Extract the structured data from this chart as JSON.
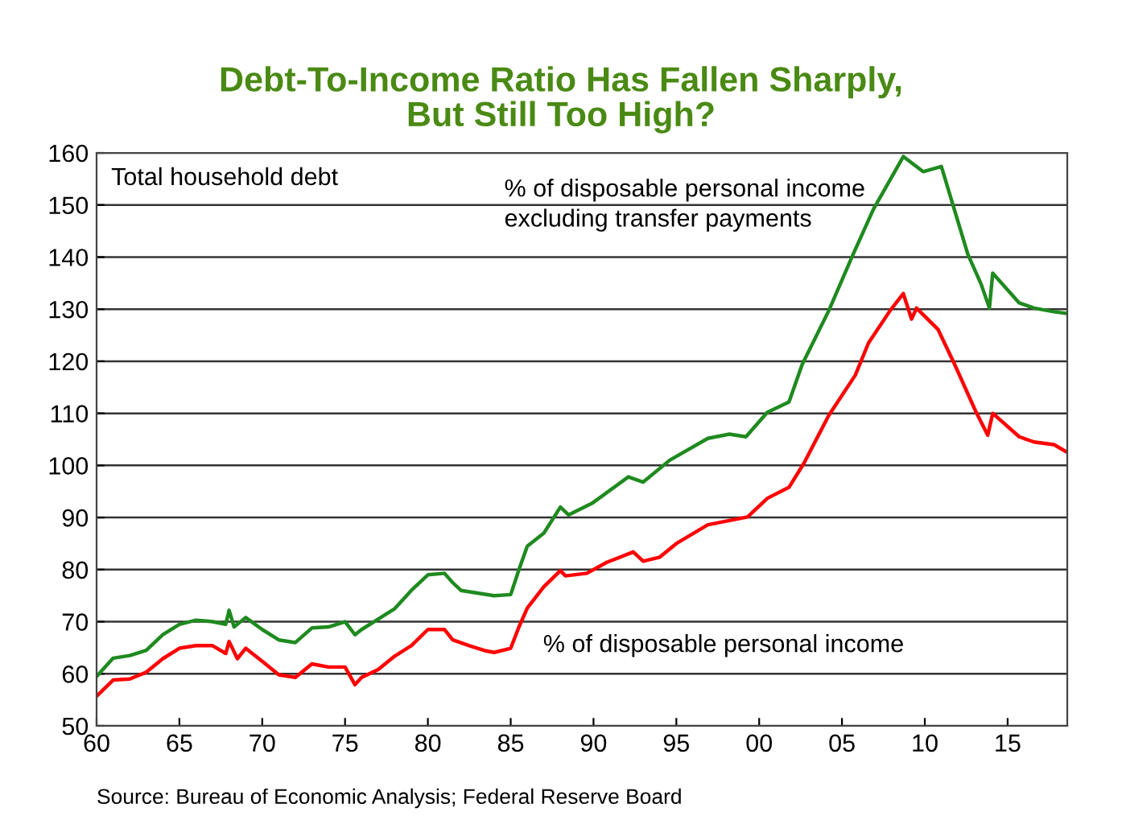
{
  "chart_data": {
    "type": "line",
    "title": "Debt-To-Income Ratio Has Fallen Sharply,\nBut Still Too High?",
    "annotations": [
      "Total household debt",
      "Source: Bureau of Economic Analysis; Federal Reserve Board"
    ],
    "xlim": [
      1960,
      2018.6
    ],
    "ylim": [
      50,
      160
    ],
    "yticks": [
      50,
      60,
      70,
      80,
      90,
      100,
      110,
      120,
      130,
      140,
      150,
      160
    ],
    "xticks": [
      {
        "value": 1960,
        "label": "60"
      },
      {
        "value": 1965,
        "label": "65"
      },
      {
        "value": 1970,
        "label": "70"
      },
      {
        "value": 1975,
        "label": "75"
      },
      {
        "value": 1980,
        "label": "80"
      },
      {
        "value": 1985,
        "label": "85"
      },
      {
        "value": 1990,
        "label": "90"
      },
      {
        "value": 1995,
        "label": "95"
      },
      {
        "value": 2000,
        "label": "00"
      },
      {
        "value": 2005,
        "label": "05"
      },
      {
        "value": 2010,
        "label": "10"
      },
      {
        "value": 2015,
        "label": "15"
      }
    ],
    "grid": "y",
    "legend": false,
    "marker": "none",
    "line_style": "solid",
    "series": [
      {
        "name": "% of disposable personal income\nexcluding transfer payments",
        "color": "#1f8a1f",
        "x": [
          1960,
          1961,
          1962,
          1963,
          1964,
          1965,
          1966,
          1967,
          1967.8,
          1968,
          1968.3,
          1969,
          1970,
          1971,
          1972,
          1973,
          1974,
          1975,
          1975.6,
          1976,
          1977,
          1978,
          1979,
          1980,
          1981,
          1981.5,
          1982,
          1983,
          1984,
          1985,
          1985.5,
          1986,
          1987,
          1988,
          1988.5,
          1989.9,
          1992.1,
          1993,
          1994.6,
          1996.9,
          1998.2,
          1999.2,
          2000.5,
          2001.8,
          2002.6,
          2004.2,
          2005.6,
          2006.9,
          2008.7,
          2009.9,
          2011,
          2012.6,
          2013.4,
          2013.9,
          2014.1,
          2015.7,
          2016.6,
          2017.8,
          2018.5
        ],
        "values": [
          59.5,
          63,
          63.5,
          64.5,
          67.5,
          69.5,
          70.3,
          70,
          69.5,
          72.2,
          69,
          70.8,
          68.5,
          66.5,
          66,
          68.8,
          69,
          70,
          67.5,
          68.5,
          70.5,
          72.5,
          76,
          79,
          79.3,
          77.5,
          76,
          75.5,
          75,
          75.2,
          80,
          84.5,
          87,
          92,
          90.5,
          92.7,
          97.8,
          96.8,
          101,
          105.2,
          106,
          105.5,
          110.2,
          112.2,
          119.4,
          129.7,
          140,
          149.2,
          159.3,
          156.4,
          157.4,
          140.5,
          134.8,
          130.2,
          136.9,
          131.2,
          130.2,
          129.5,
          129.2
        ]
      },
      {
        "name": "% of disposable personal income",
        "color": "#ff0000",
        "x": [
          1960,
          1961,
          1962,
          1963,
          1964,
          1965,
          1966,
          1967,
          1967.8,
          1968,
          1968.5,
          1969,
          1970,
          1971,
          1972,
          1973,
          1974,
          1975,
          1975.6,
          1976,
          1977,
          1978,
          1979,
          1980,
          1981,
          1981.5,
          1982.5,
          1983.5,
          1984,
          1985,
          1985.5,
          1986,
          1987,
          1988,
          1988.3,
          1989.6,
          1990.8,
          1992.4,
          1993,
          1994,
          1995,
          1996.9,
          1998.5,
          1999.3,
          2000.5,
          2001.8,
          2002.7,
          2004.2,
          2005.8,
          2006.6,
          2007.9,
          2008.7,
          2009.2,
          2009.5,
          2010.8,
          2011.8,
          2013.1,
          2013.8,
          2014.1,
          2015.7,
          2016.6,
          2017.8,
          2018.5
        ],
        "values": [
          55.7,
          58.8,
          59,
          60.3,
          62.9,
          64.9,
          65.4,
          65.4,
          63.9,
          66.2,
          62.9,
          64.9,
          62.4,
          59.8,
          59.3,
          61.9,
          61.3,
          61.3,
          57.9,
          59.3,
          60.8,
          63.4,
          65.4,
          68.5,
          68.5,
          66.5,
          65.4,
          64.4,
          64.1,
          64.9,
          69,
          72.6,
          76.7,
          79.8,
          78.8,
          79.3,
          81.4,
          83.4,
          81.6,
          82.4,
          85,
          88.6,
          89.6,
          90.1,
          93.7,
          95.8,
          100.4,
          109.6,
          117.3,
          123.5,
          129.7,
          133,
          128.1,
          130.2,
          126.1,
          119.4,
          110.2,
          105.8,
          110,
          105.5,
          104.5,
          104,
          102.7
        ]
      }
    ]
  }
}
